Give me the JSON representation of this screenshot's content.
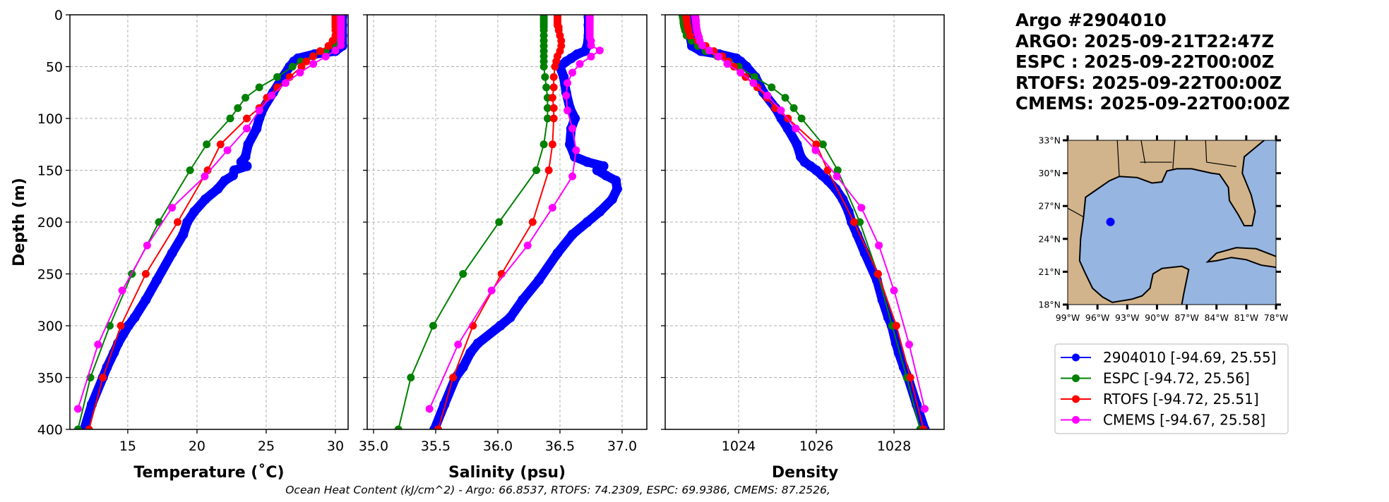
{
  "header": {
    "title": "Argo #2904010",
    "argo_time": "ARGO: 2025-09-21T22:47Z",
    "espc_time": "ESPC : 2025-09-22T00:00Z",
    "rtofs_time": "RTOFS: 2025-09-22T00:00Z",
    "cmems_time": "CMEMS: 2025-09-22T00:00Z"
  },
  "footer": "Ocean Heat Content (kJ/cm^2) - Argo: 66.8537,  RTOFS: 74.2309,  ESPC: 69.9386,  CMEMS: 87.2526,",
  "colors": {
    "argo": "#0000ff",
    "espc": "#008000",
    "rtofs": "#ff0000",
    "cmems": "#ff00ff"
  },
  "legend": [
    {
      "label": "2904010 [-94.69, 25.55]",
      "color": "#0000ff"
    },
    {
      "label": "ESPC [-94.72, 25.56]",
      "color": "#008000"
    },
    {
      "label": "RTOFS [-94.72, 25.51]",
      "color": "#ff0000"
    },
    {
      "label": "CMEMS [-94.67, 25.58]",
      "color": "#ff00ff"
    }
  ],
  "map": {
    "lat_ticks": [
      "18°N",
      "21°N",
      "24°N",
      "27°N",
      "30°N",
      "33°N"
    ],
    "lon_ticks": [
      "99°W",
      "96°W",
      "93°W",
      "90°W",
      "87°W",
      "84°W",
      "81°W",
      "78°W"
    ],
    "lon_range": [
      -99,
      -78
    ],
    "lat_range": [
      18,
      33
    ],
    "float_position": [
      -94.69,
      25.55
    ],
    "land_color": "#d2b48c",
    "water_color": "#96b5e1"
  },
  "chart_data": [
    {
      "type": "line",
      "xlabel": "Temperature (˚C)",
      "ylabel": "Depth (m)",
      "xlim": [
        10.82,
        30.92
      ],
      "ylim": [
        400,
        0
      ],
      "xticks": [
        "15",
        "20",
        "25",
        "30"
      ],
      "xtick_values": [
        15,
        20,
        25,
        30
      ],
      "yticks": [
        "0",
        "50",
        "100",
        "150",
        "200",
        "250",
        "300",
        "350",
        "400"
      ],
      "ytick_values": [
        0,
        50,
        100,
        150,
        200,
        250,
        300,
        350,
        400
      ],
      "grid": true,
      "series": [
        {
          "name": "ESPC",
          "color": "#008000",
          "depth": [
            0,
            2,
            4,
            6,
            8,
            10,
            12,
            15,
            20,
            25,
            30,
            35,
            40,
            45,
            50,
            60,
            70,
            80,
            90,
            100,
            125,
            150,
            200,
            250,
            300,
            350,
            400
          ],
          "values": [
            30.1,
            30.1,
            30.1,
            30.1,
            30.1,
            30.1,
            30.1,
            30.1,
            30.1,
            30.1,
            29.9,
            29.3,
            28.4,
            27.5,
            26.9,
            25.8,
            24.5,
            23.5,
            22.95,
            22.4,
            20.7,
            19.5,
            17.25,
            15.3,
            13.7,
            12.3,
            11.4
          ]
        },
        {
          "name": "RTOFS",
          "color": "#ff0000",
          "depth": [
            0,
            2,
            4,
            6,
            8,
            10,
            12,
            15,
            20,
            25,
            30,
            35,
            40,
            45,
            50,
            60,
            70,
            80,
            90,
            100,
            125,
            150,
            200,
            250,
            300,
            350,
            400
          ],
          "values": [
            30.0,
            30.0,
            30.0,
            30.0,
            30.0,
            30.0,
            30.0,
            30.0,
            30.0,
            29.8,
            29.5,
            28.9,
            28.4,
            27.9,
            27.55,
            26.7,
            25.8,
            25.05,
            24.5,
            23.6,
            21.7,
            20.77,
            18.6,
            16.3,
            14.5,
            13.2,
            12.2
          ]
        },
        {
          "name": "CMEMS",
          "color": "#ff00ff",
          "depth": [
            0.5,
            1.5,
            2.6,
            3.8,
            5.1,
            6.4,
            7.9,
            9.6,
            11.4,
            13.5,
            15.8,
            18.5,
            21.6,
            25.2,
            29.4,
            34.4,
            40.3,
            47.4,
            55.8,
            65.8,
            77.9,
            92.3,
            109.7,
            130.7,
            155.9,
            186.1,
            222.5,
            266.0,
            318.1,
            380.2
          ],
          "values": [
            30.4,
            30.4,
            30.4,
            30.4,
            30.4,
            30.4,
            30.4,
            30.4,
            30.4,
            30.4,
            30.4,
            30.4,
            30.4,
            30.4,
            30.4,
            30.0,
            29.3,
            28.4,
            27.45,
            26.4,
            25.4,
            24.5,
            23.6,
            22.2,
            20.56,
            18.2,
            16.4,
            14.6,
            12.85,
            11.4
          ]
        },
        {
          "name": "Argo 2904010",
          "color": "#0000ff",
          "argo": true,
          "depth": [
            2,
            10,
            20,
            30,
            35,
            38,
            42,
            45,
            50,
            60,
            75,
            90,
            100,
            110,
            125,
            137,
            142,
            146,
            150,
            155,
            160,
            168,
            178,
            190,
            200,
            212,
            230,
            256,
            275,
            292,
            300,
            317,
            326,
            340,
            350,
            376,
            400
          ],
          "values": [
            30.5,
            30.5,
            30.5,
            30.5,
            30.0,
            28.5,
            27.3,
            27.0,
            26.7,
            26.2,
            25.5,
            24.8,
            24.5,
            24.3,
            23.7,
            23.5,
            23.2,
            23.6,
            22.7,
            22.6,
            22.0,
            21.5,
            20.6,
            19.8,
            19.3,
            19.0,
            18.2,
            17.1,
            16.3,
            15.5,
            15.05,
            14.3,
            14.0,
            13.5,
            13.2,
            12.4,
            11.85
          ]
        }
      ]
    },
    {
      "type": "line",
      "xlabel": "Salinity (psu)",
      "ylabel": "",
      "xlim": [
        34.949,
        37.199
      ],
      "ylim": [
        400,
        0
      ],
      "xticks": [
        "35.0",
        "35.5",
        "36.0",
        "36.5",
        "37.0"
      ],
      "xtick_values": [
        35.0,
        35.5,
        36.0,
        36.5,
        37.0
      ],
      "grid": true,
      "series": [
        {
          "name": "ESPC",
          "color": "#008000",
          "depth": [
            0,
            2,
            4,
            6,
            8,
            10,
            12,
            15,
            20,
            25,
            30,
            35,
            40,
            45,
            50,
            60,
            70,
            80,
            90,
            100,
            125,
            150,
            200,
            250,
            300,
            350,
            400
          ],
          "values": [
            36.37,
            36.37,
            36.37,
            36.37,
            36.37,
            36.37,
            36.37,
            36.37,
            36.37,
            36.37,
            36.37,
            36.37,
            36.37,
            36.37,
            36.37,
            36.38,
            36.39,
            36.4,
            36.4,
            36.4,
            36.37,
            36.31,
            36.01,
            35.72,
            35.48,
            35.3,
            35.2
          ]
        },
        {
          "name": "RTOFS",
          "color": "#ff0000",
          "depth": [
            0,
            2,
            4,
            6,
            8,
            10,
            12,
            15,
            20,
            25,
            30,
            35,
            40,
            45,
            50,
            60,
            70,
            80,
            90,
            100,
            125,
            150,
            200,
            250,
            300,
            350,
            400
          ],
          "values": [
            36.48,
            36.48,
            36.48,
            36.48,
            36.48,
            36.48,
            36.49,
            36.49,
            36.5,
            36.51,
            36.51,
            36.5,
            36.48,
            36.47,
            36.46,
            36.45,
            36.45,
            36.44,
            36.45,
            36.45,
            36.44,
            36.41,
            36.28,
            36.03,
            35.8,
            35.64,
            35.52
          ]
        },
        {
          "name": "CMEMS",
          "color": "#ff00ff",
          "depth": [
            0.5,
            1.5,
            2.6,
            3.8,
            5.1,
            6.4,
            7.9,
            9.6,
            11.4,
            13.5,
            15.8,
            18.5,
            21.6,
            25.2,
            29.4,
            34.4,
            40.3,
            47.4,
            55.8,
            65.8,
            77.9,
            92.3,
            109.7,
            130.7,
            155.9,
            186.1,
            222.5,
            266.0,
            318.1,
            380.2
          ],
          "values": [
            36.74,
            36.74,
            36.74,
            36.74,
            36.74,
            36.74,
            36.74,
            36.74,
            36.74,
            36.74,
            36.74,
            36.74,
            36.74,
            36.75,
            36.75,
            36.82,
            36.75,
            36.66,
            36.6,
            36.56,
            36.55,
            36.56,
            36.6,
            36.63,
            36.6,
            36.44,
            36.24,
            35.95,
            35.68,
            35.45
          ]
        },
        {
          "name": "Argo 2904010",
          "color": "#0000ff",
          "argo": true,
          "depth": [
            2,
            10,
            20,
            30,
            35,
            38,
            42,
            45,
            50,
            60,
            75,
            90,
            100,
            110,
            125,
            137,
            142,
            146,
            150,
            155,
            160,
            168,
            178,
            190,
            200,
            212,
            230,
            256,
            275,
            292,
            300,
            317,
            326,
            340,
            350,
            376,
            400
          ],
          "values": [
            36.73,
            36.73,
            36.73,
            36.72,
            36.7,
            36.64,
            36.59,
            36.55,
            36.5,
            36.53,
            36.55,
            36.58,
            36.62,
            36.59,
            36.58,
            36.62,
            36.72,
            36.85,
            36.8,
            36.87,
            36.95,
            36.96,
            36.92,
            36.82,
            36.72,
            36.6,
            36.48,
            36.33,
            36.2,
            36.1,
            36.02,
            35.84,
            35.78,
            35.72,
            35.66,
            35.57,
            35.49
          ]
        }
      ]
    },
    {
      "type": "line",
      "xlabel": "Density",
      "ylabel": "",
      "xlim": [
        1022.11,
        1029.29
      ],
      "ylim": [
        400,
        0
      ],
      "xticks": [
        "1024",
        "1026",
        "1028"
      ],
      "xtick_values": [
        1024,
        1026,
        1028
      ],
      "grid": true,
      "series": [
        {
          "name": "ESPC",
          "color": "#008000",
          "depth": [
            0,
            2,
            4,
            6,
            8,
            10,
            12,
            15,
            20,
            25,
            30,
            35,
            40,
            45,
            50,
            60,
            70,
            80,
            90,
            100,
            125,
            150,
            200,
            250,
            300,
            350,
            400
          ],
          "values": [
            1022.55,
            1022.56,
            1022.57,
            1022.58,
            1022.58,
            1022.59,
            1022.6,
            1022.62,
            1022.66,
            1022.79,
            1022.95,
            1023.15,
            1023.45,
            1023.75,
            1024.0,
            1024.41,
            1024.85,
            1025.2,
            1025.42,
            1025.62,
            1026.17,
            1026.55,
            1027.12,
            1027.58,
            1027.95,
            1028.33,
            1028.67
          ]
        },
        {
          "name": "RTOFS",
          "color": "#ff0000",
          "depth": [
            0,
            2,
            4,
            6,
            8,
            10,
            12,
            15,
            20,
            25,
            30,
            35,
            40,
            45,
            50,
            60,
            70,
            80,
            90,
            100,
            125,
            150,
            200,
            250,
            300,
            350,
            400
          ],
          "values": [
            1022.64,
            1022.65,
            1022.66,
            1022.67,
            1022.67,
            1022.68,
            1022.69,
            1022.71,
            1022.75,
            1022.95,
            1023.15,
            1023.36,
            1023.58,
            1023.73,
            1023.88,
            1024.18,
            1024.48,
            1024.73,
            1024.94,
            1025.27,
            1026.0,
            1026.29,
            1026.97,
            1027.59,
            1028.06,
            1028.42,
            1028.76
          ]
        },
        {
          "name": "CMEMS",
          "color": "#ff00ff",
          "depth": [
            0.5,
            1.5,
            2.6,
            3.8,
            5.1,
            6.4,
            7.9,
            9.6,
            11.4,
            13.5,
            15.8,
            18.5,
            21.6,
            25.2,
            29.4,
            34.4,
            40.3,
            47.4,
            55.8,
            65.8,
            77.9,
            92.3,
            109.7,
            130.7,
            155.9,
            186.1,
            222.5,
            266.0,
            318.1,
            380.2
          ],
          "values": [
            1022.88,
            1022.88,
            1022.89,
            1022.89,
            1022.9,
            1022.9,
            1022.9,
            1022.91,
            1022.91,
            1022.92,
            1022.93,
            1022.95,
            1022.98,
            1023.0,
            1023.06,
            1023.24,
            1023.48,
            1023.71,
            1024.05,
            1024.38,
            1024.74,
            1025.09,
            1025.47,
            1025.98,
            1026.53,
            1027.16,
            1027.61,
            1028.0,
            1028.39,
            1028.79
          ]
        },
        {
          "name": "Argo 2904010",
          "color": "#0000ff",
          "argo": true,
          "depth": [
            2,
            10,
            20,
            30,
            35,
            38,
            42,
            45,
            50,
            60,
            75,
            90,
            100,
            110,
            125,
            137,
            142,
            146,
            150,
            155,
            160,
            168,
            178,
            190,
            200,
            212,
            230,
            256,
            275,
            292,
            300,
            317,
            326,
            340,
            350,
            376,
            400
          ],
          "values": [
            1022.73,
            1022.73,
            1022.75,
            1022.8,
            1023.03,
            1023.5,
            1023.94,
            1024.05,
            1024.2,
            1024.43,
            1024.64,
            1024.95,
            1025.1,
            1025.27,
            1025.5,
            1025.6,
            1025.7,
            1025.85,
            1026.0,
            1026.15,
            1026.3,
            1026.5,
            1026.68,
            1026.83,
            1026.91,
            1027.05,
            1027.25,
            1027.56,
            1027.7,
            1027.85,
            1027.94,
            1028.05,
            1028.12,
            1028.25,
            1028.36,
            1028.58,
            1028.79
          ]
        }
      ]
    }
  ]
}
